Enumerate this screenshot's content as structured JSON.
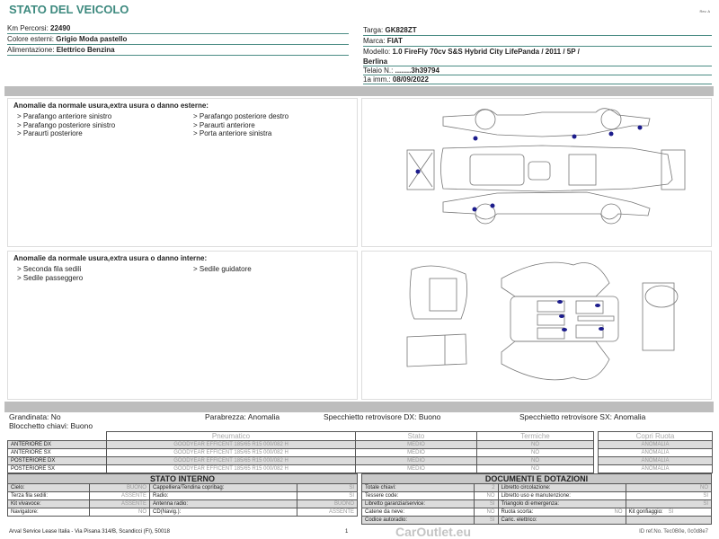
{
  "header": {
    "title": "STATO DEL VEICOLO",
    "rev": "Rev. A"
  },
  "info_left": [
    {
      "label": "Km Percorsi:",
      "value": "22490"
    },
    {
      "label": "Colore esterni:",
      "value": "Grigio Moda pastello"
    },
    {
      "label": "Alimentazione:",
      "value": "Elettrico Benzina"
    }
  ],
  "info_right": [
    {
      "label": "Targa:",
      "value": "GK828ZT"
    },
    {
      "label": "Marca:",
      "value": "FIAT"
    },
    {
      "label": "Modello:",
      "value": "1.0 FireFly 70cv S&S Hybrid City LifePanda / 2011 / 5P /"
    },
    {
      "label": "",
      "value": "Berlina"
    },
    {
      "label": "Telaio N.:",
      "value": "........3h39794"
    },
    {
      "label": "1a imm.:",
      "value": "08/09/2022"
    }
  ],
  "exterior": {
    "title": "Anomalie da normale usura,extra usura o danno esterne:",
    "items": [
      "> Parafango anteriore sinistro",
      "> Parafango posteriore destro",
      "> Parafango posteriore sinistro",
      "> Paraurti anteriore",
      "> Paraurti posteriore",
      "> Porta anteriore sinistra"
    ]
  },
  "interior": {
    "title": "Anomalie da normale usura,extra usura o danno interne:",
    "items": [
      "> Seconda fila sedili",
      "> Sedile guidatore",
      "> Sedile passeggero"
    ]
  },
  "status": {
    "grandinata": "Grandinata: No",
    "blocchetto": "Blocchetto chiavi: Buono",
    "parabrezza": "Parabrezza: Anomalia",
    "spec_dx": "Specchietto retrovisore DX: Buono",
    "spec_sx": "Specchietto retrovisore SX: Anomalia"
  },
  "tires": {
    "headers": [
      "Pneumatico",
      "Stato",
      "Termiche",
      "Copri Ruota"
    ],
    "rows": [
      {
        "pos": "ANTERIORE DX",
        "tire": "GOODYEAR EFFICENT  185/65 R15 000/082 H",
        "stato": "MEDIO",
        "termiche": "NO",
        "copri": "ANOMALIA"
      },
      {
        "pos": "ANTERIORE SX",
        "tire": "GOODYEAR EFFICENT  185/65 R15 000/082 H",
        "stato": "MEDIO",
        "termiche": "NO",
        "copri": "ANOMALIA"
      },
      {
        "pos": "POSTERIORE DX",
        "tire": "GOODYEAR EFFICENT  185/65 R15 000/082 H",
        "stato": "MEDIO",
        "termiche": "NO",
        "copri": "ANOMALIA"
      },
      {
        "pos": "POSTERIORE SX",
        "tire": "GOODYEAR EFFICENT  185/65 R15 000/082 H",
        "stato": "MEDIO",
        "termiche": "NO",
        "copri": "ANOMALIA"
      }
    ]
  },
  "interno": {
    "title": "STATO INTERNO",
    "rows": [
      [
        "Cielo:",
        "BUONO",
        "Cappelliera/Tendina copribag:",
        "SI"
      ],
      [
        "Terza fila sedili:",
        "ASSENTE",
        "Radio:",
        "SI"
      ],
      [
        "Kit vivavoce:",
        "ASSENTE",
        "Antenna radio:",
        "BUONO"
      ],
      [
        "Navigatore:",
        "NO",
        "CD(Navig.):",
        "ASSENTE"
      ]
    ]
  },
  "documenti": {
    "title": "DOCUMENTI E DOTAZIONI",
    "rows": [
      [
        "Totale chiavi:",
        "2",
        "Libretto circolazione:",
        "NO"
      ],
      [
        "Tessere code:",
        "NO",
        "Libretto uso e manutenzione:",
        "SI"
      ],
      [
        "Libretto garanzia/service:",
        "SI",
        "Triangolo di emergenza:",
        "SI"
      ],
      [
        "Catene da neve:",
        "NO",
        "Ruota scorta:",
        "NO"
      ],
      [
        "Codice autoradio:",
        "SI",
        "Caric. elettrico:",
        ""
      ]
    ],
    "kit_label": "Kit gonfiaggio:",
    "kit_value": "SI"
  },
  "footer": {
    "address": "Arval Service Lease Italia - Via Pisana 314/B, Scandicci (FI), 50018",
    "page": "1",
    "ref": "ID ref.No. Tec0B0e, 0c0d8e7",
    "watermark": "CarOutlet.eu"
  },
  "colors": {
    "title": "#3e8a7f",
    "damage_marker": "#1c1c8c"
  }
}
